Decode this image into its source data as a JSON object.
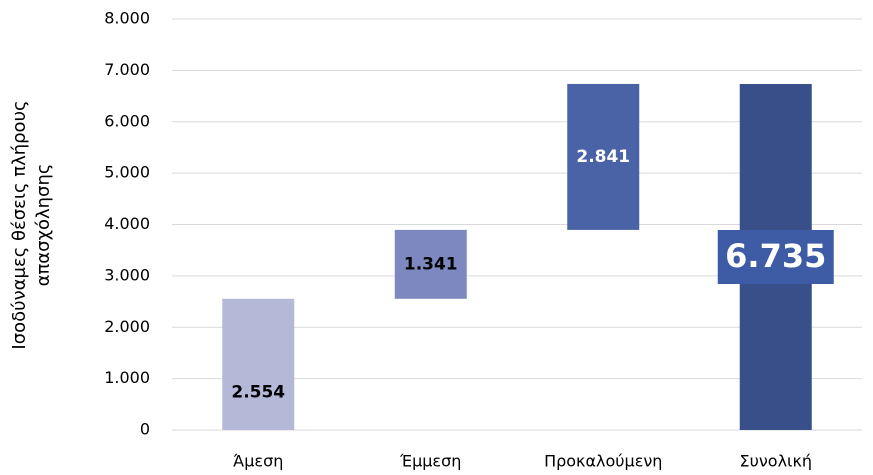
{
  "chart_data": {
    "type": "waterfall",
    "ylabel": [
      "Ισοδύναμες θέσεις πλήρους",
      "απασχόλησης"
    ],
    "categories": [
      "Άμεση",
      "Έμμεση",
      "Προκαλούμενη",
      "Συνολική"
    ],
    "values": [
      2554,
      1341,
      2841,
      6735
    ],
    "value_labels": [
      "2.554",
      "1.341",
      "2.841",
      "6.735"
    ],
    "totals": [
      false,
      false,
      false,
      true
    ],
    "colors": [
      "#b4b9d8",
      "#7c88bf",
      "#4a63a7",
      "#384f8a"
    ],
    "ylim": [
      0,
      8000
    ],
    "yticks": [
      0,
      {
        "value": 1000,
        "label": "1.000"
      },
      {
        "value": 2000,
        "label": "2.000"
      },
      {
        "value": 3000,
        "label": "3.000"
      },
      {
        "value": 4000,
        "label": "4.000"
      },
      {
        "value": 5000,
        "label": "5.000"
      },
      {
        "value": 6000,
        "label": "6.000"
      },
      {
        "value": 7000,
        "label": "7.000"
      },
      {
        "value": 8000,
        "label": "8.000"
      }
    ],
    "grid": true
  }
}
